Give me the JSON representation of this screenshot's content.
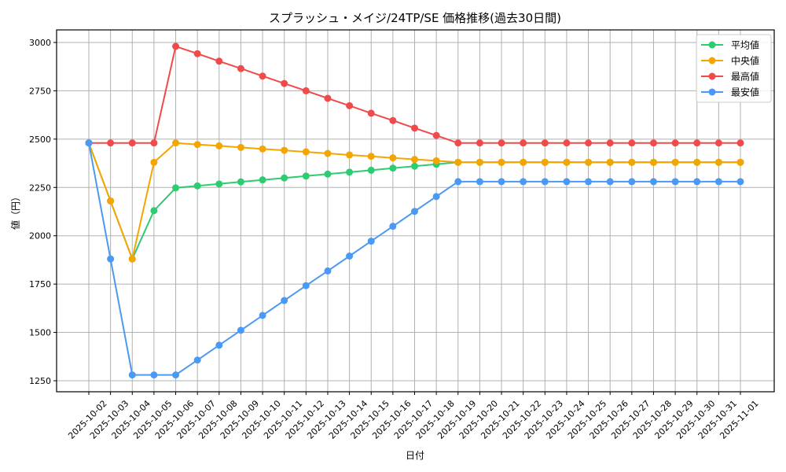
{
  "chart_data": {
    "type": "line",
    "title": "スプラッシュ・メイジ/24TP/SE 価格推移(過去30日間)",
    "xlabel": "日付",
    "ylabel": "値（円）",
    "ylim": [
      1193,
      3065
    ],
    "yticks": [
      1250,
      1500,
      1750,
      2000,
      2250,
      2500,
      2750,
      3000
    ],
    "grid": true,
    "legend_position": "upper right",
    "x": [
      "2025-10-02",
      "2025-10-03",
      "2025-10-04",
      "2025-10-05",
      "2025-10-06",
      "2025-10-07",
      "2025-10-08",
      "2025-10-09",
      "2025-10-10",
      "2025-10-11",
      "2025-10-12",
      "2025-10-13",
      "2025-10-14",
      "2025-10-15",
      "2025-10-16",
      "2025-10-17",
      "2025-10-18",
      "2025-10-19",
      "2025-10-20",
      "2025-10-21",
      "2025-10-22",
      "2025-10-23",
      "2025-10-24",
      "2025-10-25",
      "2025-10-26",
      "2025-10-27",
      "2025-10-28",
      "2025-10-29",
      "2025-10-30",
      "2025-10-31",
      "2025-11-01"
    ],
    "series": [
      {
        "name": "平均値",
        "color": "#2ecc71",
        "values": [
          2480,
          2180,
          1880,
          2130,
          2248,
          2258,
          2268,
          2279,
          2289,
          2299,
          2309,
          2319,
          2329,
          2339,
          2350,
          2360,
          2370,
          2380,
          2380,
          2380,
          2380,
          2380,
          2380,
          2380,
          2380,
          2380,
          2380,
          2380,
          2380,
          2380,
          2380
        ]
      },
      {
        "name": "中央値",
        "color": "#f5a500",
        "values": [
          2480,
          2180,
          1880,
          2380,
          2480,
          2472,
          2465,
          2457,
          2449,
          2442,
          2434,
          2426,
          2418,
          2411,
          2403,
          2395,
          2388,
          2380,
          2380,
          2380,
          2380,
          2380,
          2380,
          2380,
          2380,
          2380,
          2380,
          2380,
          2380,
          2380,
          2380
        ]
      },
      {
        "name": "最高値",
        "color": "#f04a4a",
        "values": [
          2480,
          2480,
          2480,
          2480,
          2980,
          2942,
          2903,
          2865,
          2826,
          2788,
          2750,
          2711,
          2673,
          2634,
          2596,
          2557,
          2519,
          2480,
          2480,
          2480,
          2480,
          2480,
          2480,
          2480,
          2480,
          2480,
          2480,
          2480,
          2480,
          2480,
          2480
        ]
      },
      {
        "name": "最安値",
        "color": "#4a9af5",
        "values": [
          2480,
          1880,
          1280,
          1280,
          1280,
          1357,
          1434,
          1511,
          1588,
          1665,
          1742,
          1818,
          1895,
          1972,
          2049,
          2126,
          2203,
          2280,
          2280,
          2280,
          2280,
          2280,
          2280,
          2280,
          2280,
          2280,
          2280,
          2280,
          2280,
          2280,
          2280
        ]
      }
    ]
  }
}
